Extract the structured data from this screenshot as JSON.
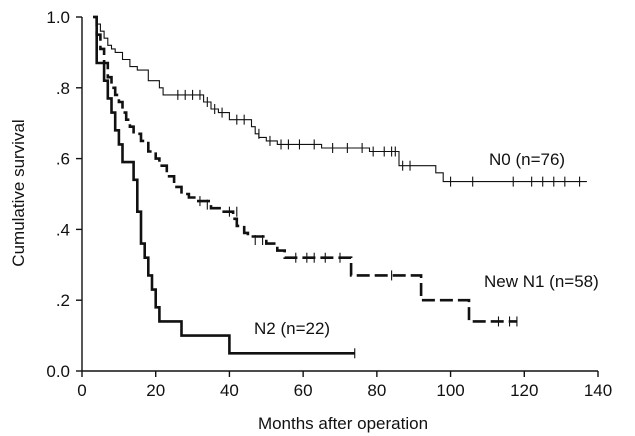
{
  "chart_data": {
    "type": "line",
    "subtype": "kaplan-meier step survival curves",
    "title": "",
    "xlabel": "Months after operation",
    "ylabel": "Cumulative survival",
    "xlim": [
      0,
      140
    ],
    "ylim": [
      0,
      1.0
    ],
    "x_ticks": [
      0,
      20,
      40,
      60,
      80,
      100,
      120,
      140
    ],
    "x_tick_labels": [
      "0",
      "20",
      "40",
      "60",
      "80",
      "100",
      "120",
      "140"
    ],
    "y_ticks": [
      0,
      0.2,
      0.4,
      0.6,
      0.8,
      1.0
    ],
    "y_tick_labels": [
      "0.0",
      ".2",
      ".4",
      ".6",
      ".8",
      "1.0"
    ],
    "grid": false,
    "legend": "none (series labelled directly on plot)",
    "series": [
      {
        "name": "N0 (n=76)",
        "line_style": "thin solid",
        "steps": [
          [
            3,
            1.0
          ],
          [
            4,
            0.98
          ],
          [
            5,
            0.96
          ],
          [
            6,
            0.94
          ],
          [
            7,
            0.92
          ],
          [
            8,
            0.91
          ],
          [
            9,
            0.9
          ],
          [
            11,
            0.88
          ],
          [
            13,
            0.86
          ],
          [
            15,
            0.85
          ],
          [
            18,
            0.82
          ],
          [
            21,
            0.8
          ],
          [
            22,
            0.78
          ],
          [
            33,
            0.76
          ],
          [
            35,
            0.74
          ],
          [
            37,
            0.73
          ],
          [
            40,
            0.71
          ],
          [
            46,
            0.69
          ],
          [
            47,
            0.67
          ],
          [
            48,
            0.66
          ],
          [
            50,
            0.65
          ],
          [
            53,
            0.64
          ],
          [
            65,
            0.63
          ],
          [
            78,
            0.62
          ],
          [
            86,
            0.58
          ],
          [
            96,
            0.56
          ],
          [
            98,
            0.535
          ],
          [
            137,
            0.535
          ]
        ],
        "censored": [
          [
            26,
            0.78
          ],
          [
            28,
            0.78
          ],
          [
            30,
            0.78
          ],
          [
            32,
            0.78
          ],
          [
            34,
            0.76
          ],
          [
            36,
            0.74
          ],
          [
            38,
            0.73
          ],
          [
            42,
            0.71
          ],
          [
            44,
            0.71
          ],
          [
            48,
            0.67
          ],
          [
            51,
            0.65
          ],
          [
            54,
            0.64
          ],
          [
            56,
            0.64
          ],
          [
            59,
            0.64
          ],
          [
            63,
            0.64
          ],
          [
            68,
            0.63
          ],
          [
            72,
            0.63
          ],
          [
            76,
            0.63
          ],
          [
            79,
            0.62
          ],
          [
            82,
            0.62
          ],
          [
            84,
            0.62
          ],
          [
            85,
            0.62
          ],
          [
            87,
            0.58
          ],
          [
            89,
            0.58
          ],
          [
            100,
            0.535
          ],
          [
            106,
            0.535
          ],
          [
            117,
            0.535
          ],
          [
            122,
            0.535
          ],
          [
            125,
            0.535
          ],
          [
            128,
            0.535
          ],
          [
            131,
            0.535
          ],
          [
            135,
            0.535
          ]
        ]
      },
      {
        "name": "New N1 (n=58)",
        "line_style": "thick dashed",
        "steps": [
          [
            3,
            1.0
          ],
          [
            4,
            0.95
          ],
          [
            5,
            0.91
          ],
          [
            6,
            0.87
          ],
          [
            7,
            0.83
          ],
          [
            8,
            0.8
          ],
          [
            9,
            0.78
          ],
          [
            10,
            0.76
          ],
          [
            11,
            0.73
          ],
          [
            12,
            0.71
          ],
          [
            13,
            0.69
          ],
          [
            14,
            0.67
          ],
          [
            16,
            0.65
          ],
          [
            18,
            0.62
          ],
          [
            20,
            0.6
          ],
          [
            21,
            0.58
          ],
          [
            23,
            0.55
          ],
          [
            25,
            0.52
          ],
          [
            27,
            0.5
          ],
          [
            29,
            0.49
          ],
          [
            31,
            0.48
          ],
          [
            35,
            0.46
          ],
          [
            38,
            0.45
          ],
          [
            41,
            0.43
          ],
          [
            42,
            0.41
          ],
          [
            44,
            0.39
          ],
          [
            45,
            0.38
          ],
          [
            50,
            0.36
          ],
          [
            53,
            0.34
          ],
          [
            55,
            0.32
          ],
          [
            73,
            0.27
          ],
          [
            92,
            0.2
          ],
          [
            105,
            0.14
          ],
          [
            118,
            0.14
          ]
        ],
        "censored": [
          [
            32,
            0.48
          ],
          [
            34,
            0.47
          ],
          [
            40,
            0.45
          ],
          [
            42,
            0.45
          ],
          [
            47,
            0.37
          ],
          [
            49,
            0.37
          ],
          [
            58,
            0.32
          ],
          [
            61,
            0.32
          ],
          [
            63,
            0.32
          ],
          [
            66,
            0.32
          ],
          [
            70,
            0.32
          ],
          [
            84,
            0.27
          ],
          [
            113,
            0.14
          ],
          [
            116,
            0.14
          ],
          [
            118,
            0.14
          ]
        ]
      },
      {
        "name": "N2 (n=22)",
        "line_style": "thick solid",
        "steps": [
          [
            3,
            1.0
          ],
          [
            4,
            0.87
          ],
          [
            6,
            0.82
          ],
          [
            7,
            0.77
          ],
          [
            8,
            0.73
          ],
          [
            9,
            0.68
          ],
          [
            10,
            0.64
          ],
          [
            11,
            0.59
          ],
          [
            14,
            0.54
          ],
          [
            15,
            0.45
          ],
          [
            16,
            0.36
          ],
          [
            17,
            0.32
          ],
          [
            18,
            0.27
          ],
          [
            19,
            0.23
          ],
          [
            20,
            0.18
          ],
          [
            21,
            0.14
          ],
          [
            27,
            0.1
          ],
          [
            40,
            0.05
          ],
          [
            74,
            0.05
          ]
        ],
        "censored": [
          [
            74,
            0.05
          ]
        ]
      }
    ]
  }
}
